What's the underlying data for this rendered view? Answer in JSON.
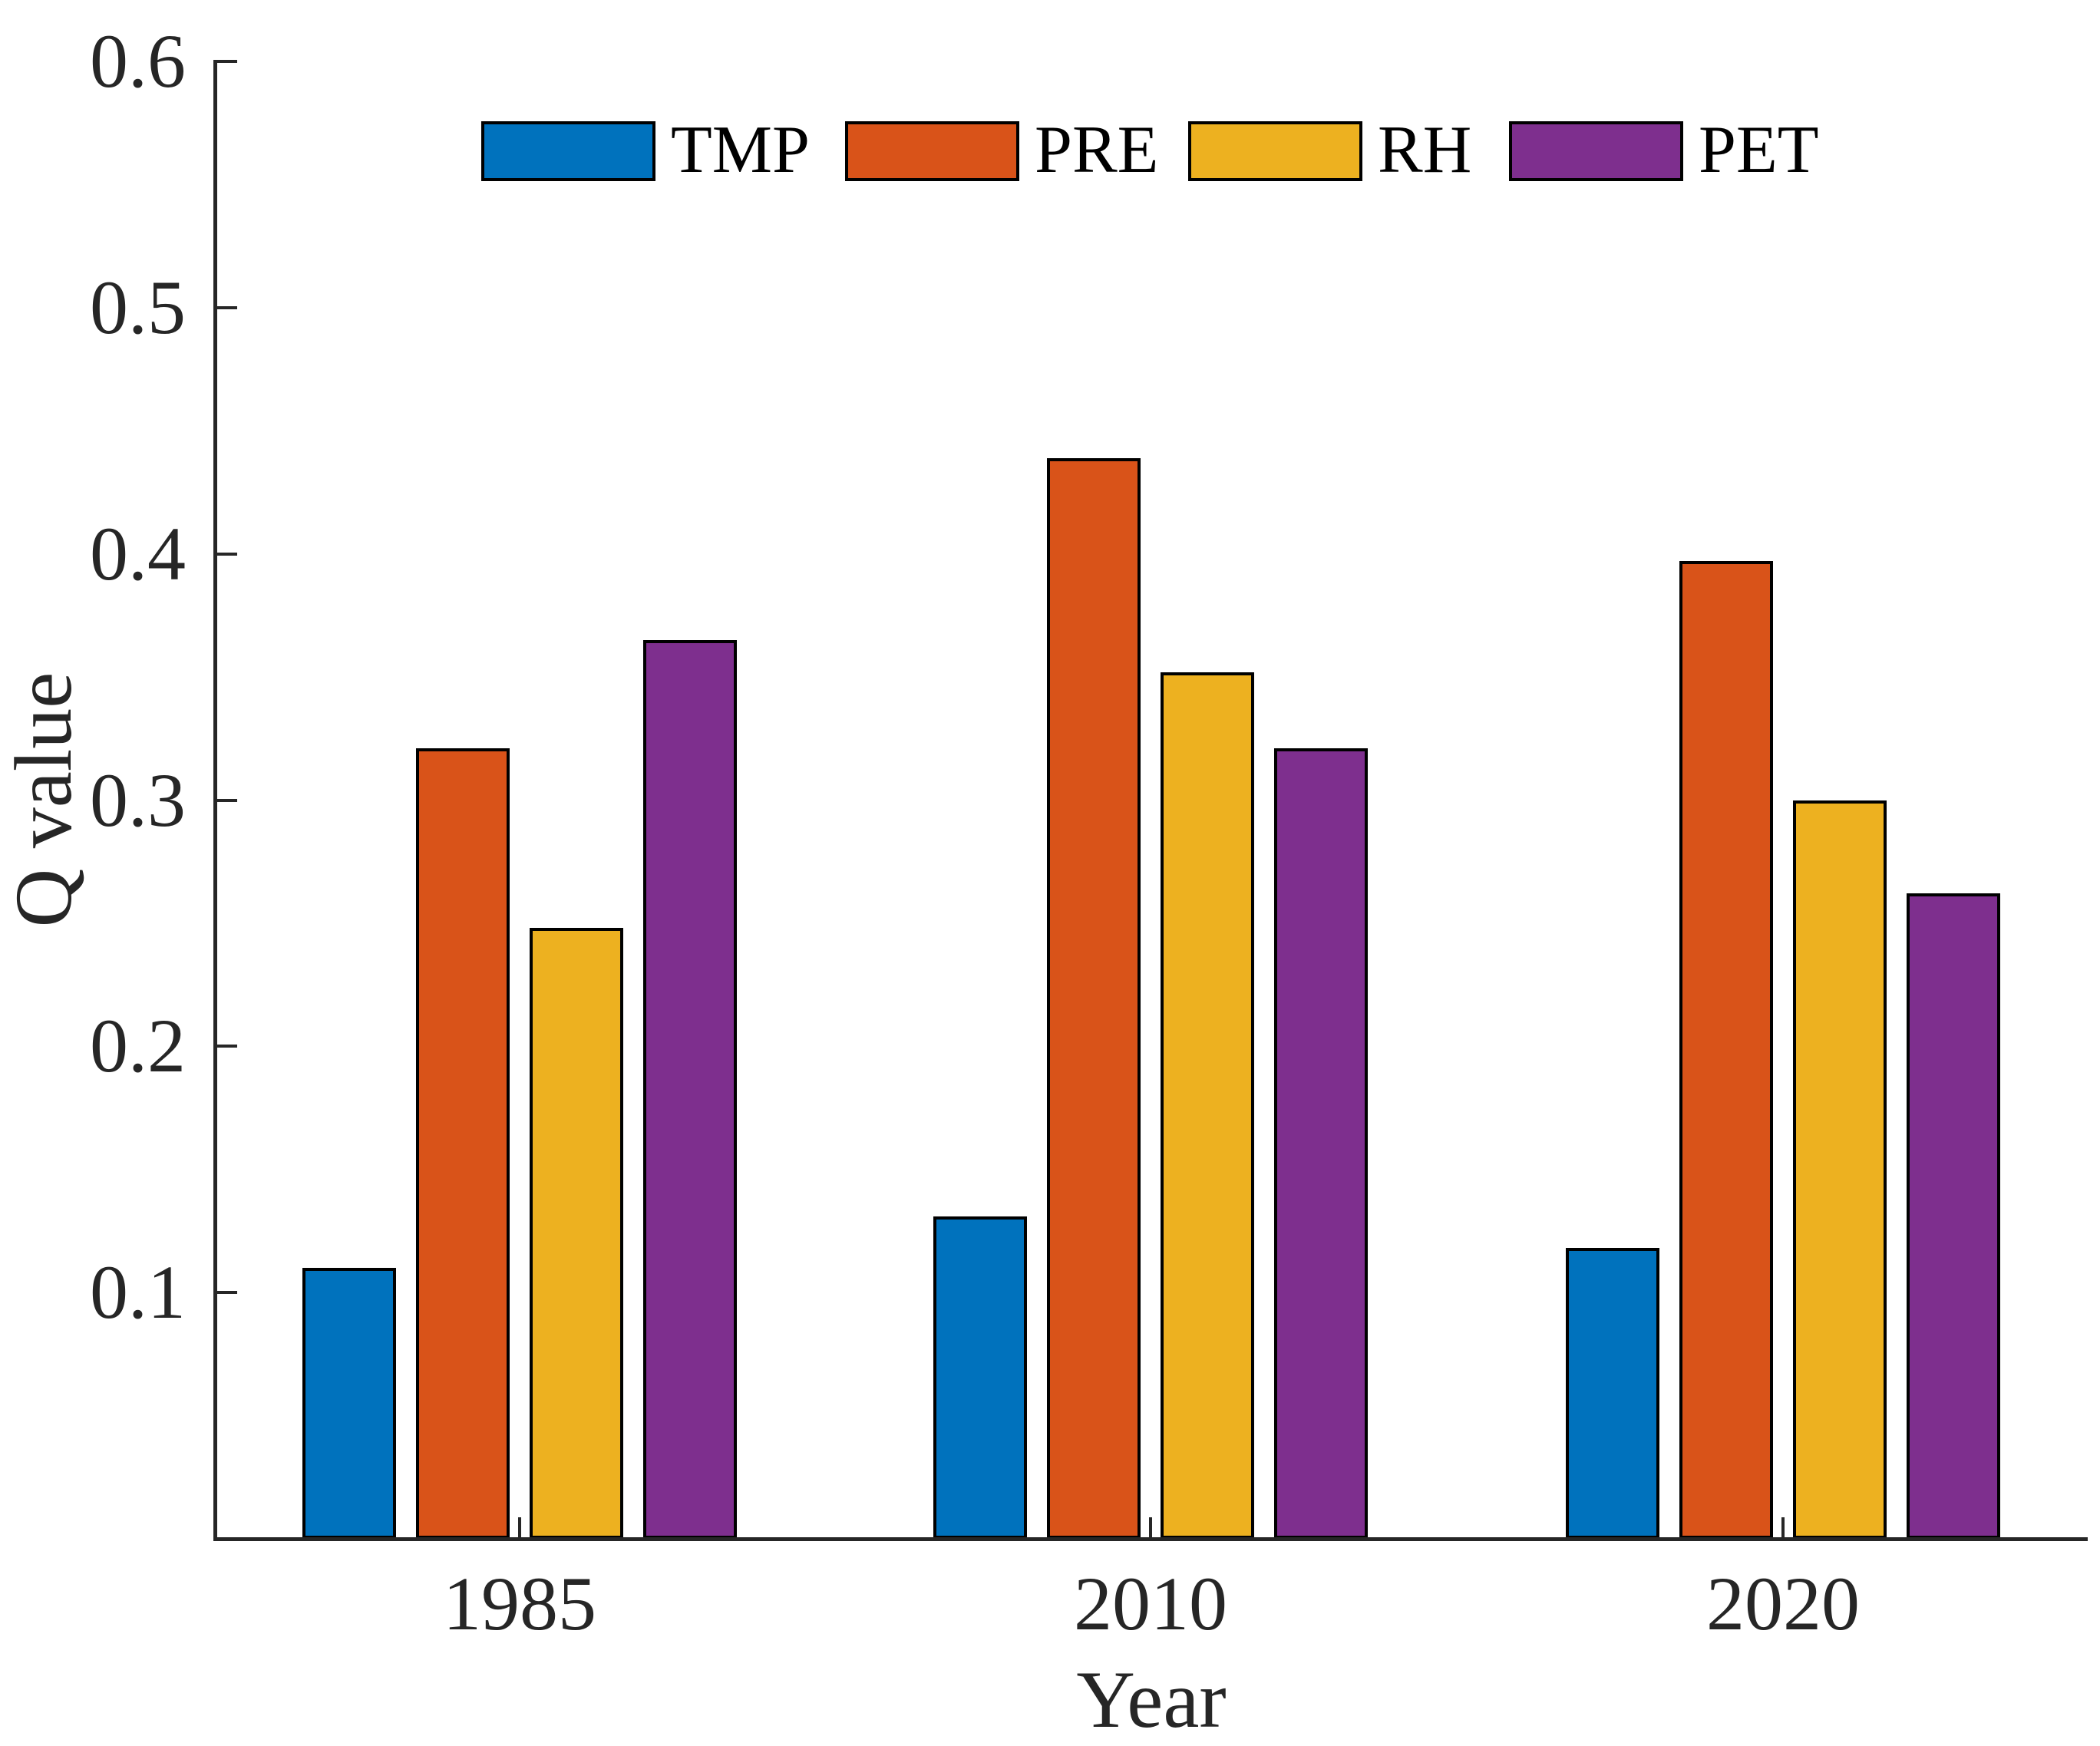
{
  "figure": {
    "background": "#ffffff",
    "axis_color": "#262626",
    "text_color": "#262626"
  },
  "chart_data": {
    "type": "bar",
    "title": "",
    "xlabel": "Year",
    "ylabel": "Q value",
    "categories": [
      "1985",
      "2010",
      "2020"
    ],
    "series": [
      {
        "name": "TMP",
        "color": "#0072BD",
        "values": [
          0.11,
          0.131,
          0.118
        ]
      },
      {
        "name": "PRE",
        "color": "#D95319",
        "values": [
          0.321,
          0.439,
          0.397
        ]
      },
      {
        "name": "RH",
        "color": "#EDB120",
        "values": [
          0.248,
          0.352,
          0.3
        ]
      },
      {
        "name": "PET",
        "color": "#7E2F8E",
        "values": [
          0.365,
          0.321,
          0.262
        ]
      }
    ],
    "ylim": [
      0,
      0.6
    ],
    "yticks": [
      "0.1",
      "0.2",
      "0.3",
      "0.4",
      "0.5",
      "0.6"
    ],
    "bar_edge_color": "#000000",
    "legend_position": "top-center",
    "legend_orientation": "horizontal",
    "grid": false
  }
}
